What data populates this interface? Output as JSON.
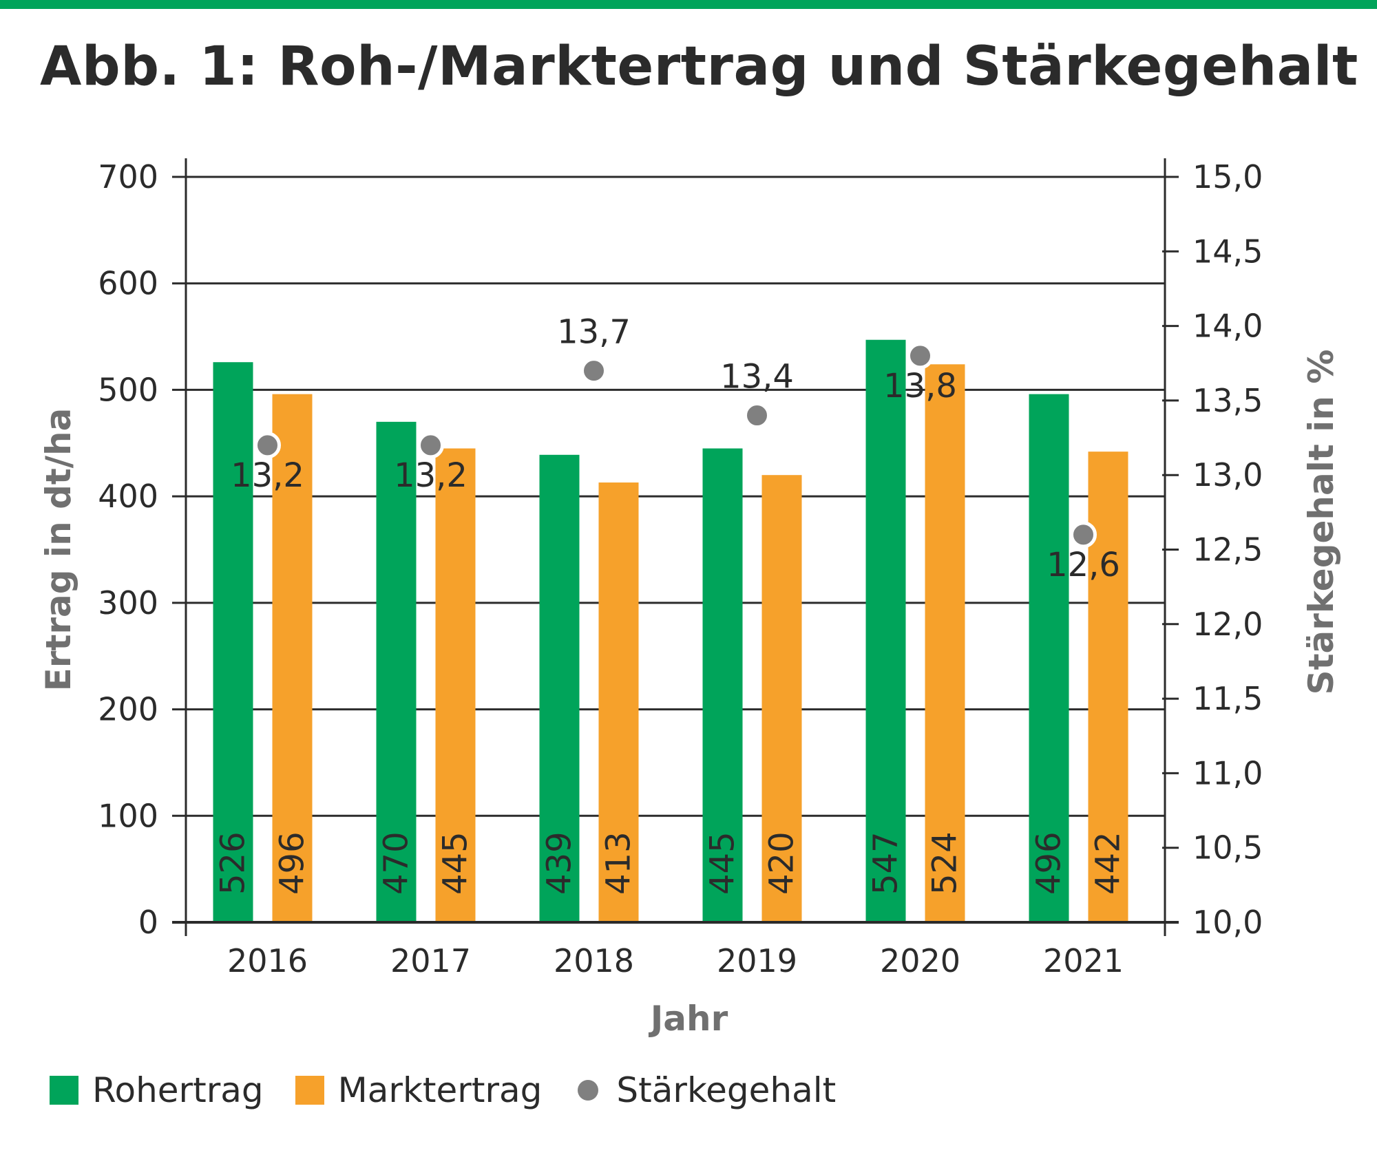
{
  "title": "Abb. 1: Roh-/Marktertrag und Stärkegehalt",
  "colors": {
    "rohertrag": "#00a45a",
    "marktertrag": "#f6a12b",
    "staerke": "#808080",
    "accent_bar": "#00a45a"
  },
  "legend": {
    "items": [
      {
        "label": "Rohertrag",
        "shape": "square",
        "color": "#00a45a"
      },
      {
        "label": "Marktertrag",
        "shape": "square",
        "color": "#f6a12b"
      },
      {
        "label": "Stärkegehalt",
        "shape": "dot",
        "color": "#808080"
      }
    ]
  },
  "chart_data": {
    "type": "bar",
    "categories": [
      "2016",
      "2017",
      "2018",
      "2019",
      "2020",
      "2021"
    ],
    "xlabel": "Jahr",
    "ylabel": "Ertrag in dt/ha",
    "ylabel_right": "Stärkegehalt in %",
    "ylim": [
      0,
      700
    ],
    "yticks": [
      "0",
      "100",
      "200",
      "300",
      "400",
      "500",
      "600",
      "700"
    ],
    "ylim_right": [
      10.0,
      15.0
    ],
    "yticks_right": [
      "10,0",
      "10,5",
      "11,0",
      "11,5",
      "12,0",
      "12,5",
      "13,0",
      "13,5",
      "14,0",
      "14,5",
      "15,0"
    ],
    "grid": true,
    "legend_position": "bottom-left",
    "series": [
      {
        "name": "Rohertrag",
        "type": "bar",
        "axis": "left",
        "color": "#00a45a",
        "values": [
          526,
          470,
          439,
          445,
          547,
          496
        ],
        "labels": [
          "526",
          "470",
          "439",
          "445",
          "547",
          "496"
        ]
      },
      {
        "name": "Marktertrag",
        "type": "bar",
        "axis": "left",
        "color": "#f6a12b",
        "values": [
          496,
          445,
          413,
          420,
          524,
          442
        ],
        "labels": [
          "496",
          "445",
          "413",
          "420",
          "524",
          "442"
        ]
      },
      {
        "name": "Stärkegehalt",
        "type": "scatter",
        "axis": "right",
        "color": "#808080",
        "values": [
          13.2,
          13.2,
          13.7,
          13.4,
          13.8,
          12.6
        ],
        "labels": [
          "13,2",
          "13,2",
          "13,7",
          "13,4",
          "13,8",
          "12,6"
        ]
      }
    ]
  }
}
